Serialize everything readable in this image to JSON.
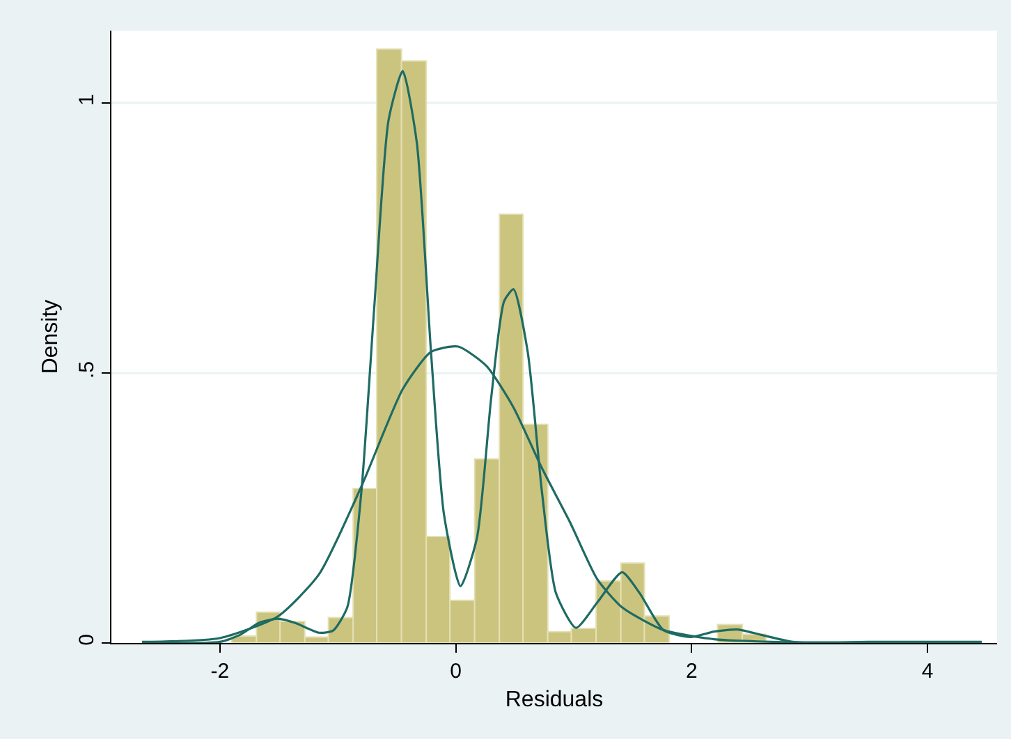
{
  "chart_data": {
    "type": "histogram",
    "xlabel": "Residuals",
    "ylabel": "Density",
    "bins": [
      -1.9,
      -1.69,
      -1.49,
      -1.28,
      -1.08,
      -0.87,
      -0.67,
      -0.46,
      -0.25,
      -0.05,
      0.16,
      0.37,
      0.57,
      0.78,
      0.98,
      1.19,
      1.4,
      1.6,
      1.81,
      2.22,
      2.43,
      2.63
    ],
    "values": [
      0.013,
      0.057,
      0.04,
      0.011,
      0.047,
      0.286,
      1.1,
      1.078,
      0.197,
      0.079,
      0.341,
      0.794,
      0.405,
      0.021,
      0.027,
      0.115,
      0.148,
      0.05,
      0,
      0.034,
      0.016
    ],
    "color": "#cbc47f",
    "series": [
      {
        "type": "line",
        "color": "#1e6b63",
        "x": [
          -2.66,
          -2.0,
          -1.83,
          -1.67,
          -1.51,
          -1.36,
          -1.16,
          -1.04,
          -0.92,
          -0.8,
          -0.69,
          -0.57,
          -0.45,
          -0.33,
          -0.21,
          -0.1,
          0.04,
          0.18,
          0.3,
          0.41,
          0.49,
          0.61,
          0.73,
          0.85,
          1.02,
          1.2,
          1.41,
          1.56,
          1.76,
          1.99,
          2.19,
          2.39,
          2.59,
          2.86,
          3.5,
          4.46
        ],
        "values": [
          0,
          0.002,
          0.015,
          0.037,
          0.045,
          0.037,
          0.019,
          0.023,
          0.066,
          0.281,
          0.625,
          0.968,
          1.059,
          0.926,
          0.539,
          0.238,
          0.105,
          0.195,
          0.453,
          0.633,
          0.655,
          0.539,
          0.281,
          0.092,
          0.028,
          0.075,
          0.131,
          0.092,
          0.024,
          0.011,
          0.021,
          0.025,
          0.015,
          0.002,
          0.002,
          0.002
        ]
      },
      {
        "type": "line",
        "color": "#1e6b63",
        "x": [
          -2.66,
          -2.0,
          -1.51,
          -1.16,
          -0.8,
          -0.45,
          -0.21,
          0.02,
          0.26,
          0.49,
          0.73,
          0.97,
          1.2,
          1.41,
          1.76,
          2.19,
          2.86
        ],
        "values": [
          0.002,
          0.009,
          0.049,
          0.127,
          0.29,
          0.47,
          0.539,
          0.549,
          0.513,
          0.436,
          0.324,
          0.223,
          0.118,
          0.066,
          0.024,
          0.007,
          0.001
        ]
      }
    ],
    "xlim": [
      -2.92,
      4.59
    ],
    "ylim": [
      0,
      1.134
    ],
    "xticks": [
      -2,
      0,
      2,
      4
    ],
    "yticks": [
      0,
      {
        "value": 0.5,
        "label": ".5"
      },
      1
    ],
    "grid": "y"
  }
}
